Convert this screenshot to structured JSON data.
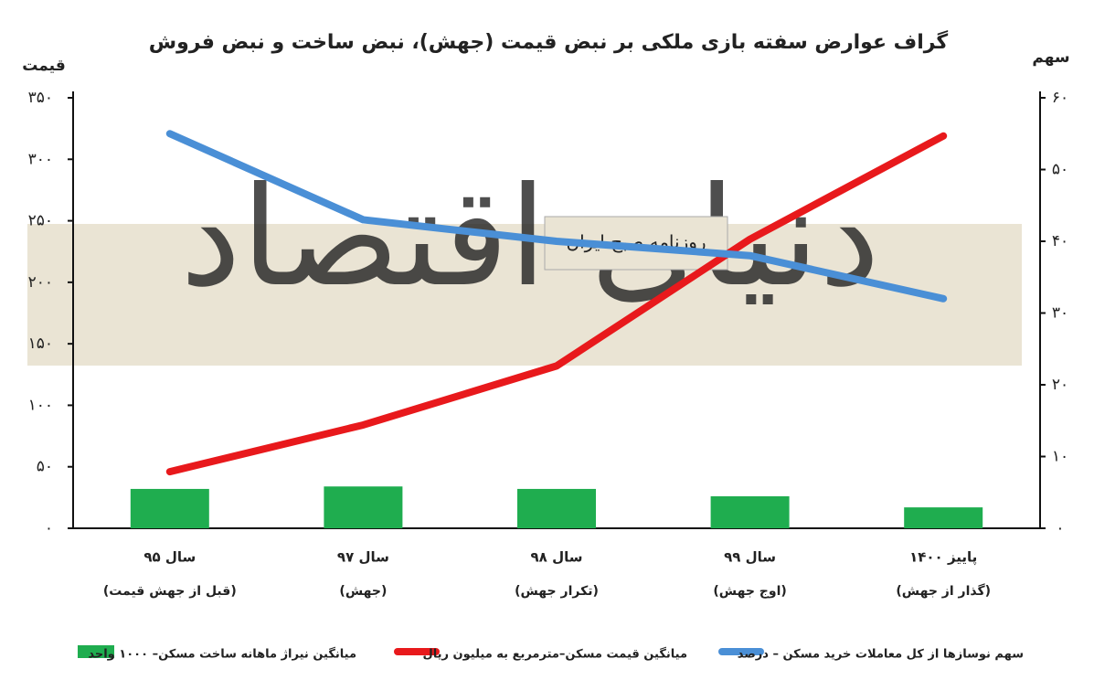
{
  "chart_data": {
    "type": "bar-line",
    "title": "گراف عوارض سفته بازی ملکی بر نبض قیمت (جهش)، نبض ساخت و نبض فروش",
    "y_label": "قیمت",
    "y2_label": "سهم",
    "watermark": "دنیای اقتصاد",
    "watermark_sub": "روزنامه صبح ایران",
    "categories": [
      "سال ۹۵",
      "سال ۹۷",
      "سال ۹۸",
      "سال ۹۹",
      "پاییز ۱۴۰۰"
    ],
    "category_notes": [
      "(قبل از جهش قیمت)",
      "(جهش)",
      "(تکرار جهش)",
      "(اوج جهش)",
      "(گذار از جهش)"
    ],
    "ylim": [
      0,
      350
    ],
    "yticks": [
      {
        "value": 0,
        "label": "۰"
      },
      {
        "value": 50,
        "label": "۵۰"
      },
      {
        "value": 100,
        "label": "۱۰۰"
      },
      {
        "value": 150,
        "label": "۱۵۰"
      },
      {
        "value": 200,
        "label": "۲۰۰"
      },
      {
        "value": 250,
        "label": "۲۵۰"
      },
      {
        "value": 300,
        "label": "۳۰۰"
      },
      {
        "value": 350,
        "label": "۳۵۰"
      }
    ],
    "y2lim": [
      0,
      60
    ],
    "y2ticks": [
      {
        "value": 0,
        "label": "۰"
      },
      {
        "value": 10,
        "label": "۱۰"
      },
      {
        "value": 20,
        "label": "۲۰"
      },
      {
        "value": 30,
        "label": "۳۰"
      },
      {
        "value": 40,
        "label": "۴۰"
      },
      {
        "value": 50,
        "label": "۵۰"
      },
      {
        "value": 60,
        "label": "۶۰"
      }
    ],
    "series": [
      {
        "name": "میانگین نیراژ ماهانه ساخت مسکن– ۱۰۰۰ واحد",
        "type": "bar",
        "color": "#1fad4f",
        "values": [
          32,
          34,
          32,
          26,
          17
        ]
      },
      {
        "name": "میانگین قیمت مسکن–مترمربع به میلیون ریال",
        "type": "line",
        "color": "#e8191c",
        "values": [
          46,
          84,
          132,
          235,
          319
        ]
      },
      {
        "name": "سهم نوسازها از کل معاملات خرید مسکن – درصد",
        "type": "line",
        "axis": "y2",
        "color": "#4a8fd6",
        "values": [
          55,
          43,
          40,
          38,
          32
        ]
      }
    ]
  }
}
